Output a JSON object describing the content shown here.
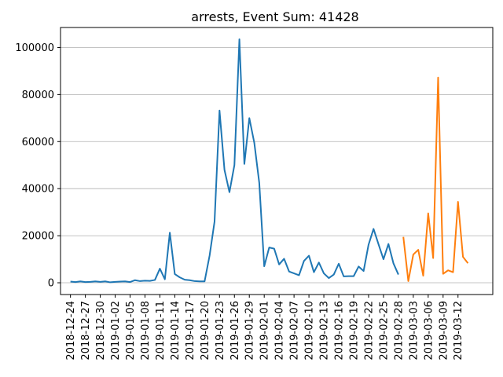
{
  "chart_data": {
    "type": "line",
    "title": "arrests, Event Sum: 41428",
    "xlabel": "",
    "ylabel": "",
    "x_start": "2018-12-24",
    "x_ticks": [
      "2018-12-24",
      "2018-12-27",
      "2018-12-30",
      "2019-01-02",
      "2019-01-05",
      "2019-01-08",
      "2019-01-11",
      "2019-01-14",
      "2019-01-17",
      "2019-01-20",
      "2019-01-23",
      "2019-01-26",
      "2019-01-29",
      "2019-02-01",
      "2019-02-04",
      "2019-02-07",
      "2019-02-10",
      "2019-02-13",
      "2019-02-16",
      "2019-02-19",
      "2019-02-22",
      "2019-02-25",
      "2019-02-28",
      "2019-03-03",
      "2019-03-06",
      "2019-03-09",
      "2019-03-12"
    ],
    "y_ticks": [
      0,
      20000,
      40000,
      60000,
      80000,
      100000
    ],
    "y_tick_labels": [
      "0",
      "20000",
      "40000",
      "60000",
      "80000",
      "100000"
    ],
    "xlim": [
      "2018-12-22",
      "2019-03-19"
    ],
    "ylim": [
      -5000,
      108500
    ],
    "grid": "y",
    "colors": {
      "series1": "#1f77b4",
      "series2": "#ff7f0e"
    },
    "series": [
      {
        "color": "#1f77b4",
        "x": [
          "2018-12-24",
          "2018-12-25",
          "2018-12-26",
          "2018-12-27",
          "2018-12-28",
          "2018-12-29",
          "2018-12-30",
          "2018-12-31",
          "2019-01-01",
          "2019-01-02",
          "2019-01-03",
          "2019-01-04",
          "2019-01-05",
          "2019-01-06",
          "2019-01-07",
          "2019-01-08",
          "2019-01-09",
          "2019-01-10",
          "2019-01-11",
          "2019-01-12",
          "2019-01-13",
          "2019-01-14",
          "2019-01-15",
          "2019-01-16",
          "2019-01-17",
          "2019-01-18",
          "2019-01-19",
          "2019-01-20",
          "2019-01-21",
          "2019-01-22",
          "2019-01-23",
          "2019-01-24",
          "2019-01-25",
          "2019-01-26",
          "2019-01-27",
          "2019-01-28",
          "2019-01-29",
          "2019-01-30",
          "2019-01-31",
          "2019-02-01",
          "2019-02-02",
          "2019-02-03",
          "2019-02-04",
          "2019-02-05",
          "2019-02-06",
          "2019-02-07",
          "2019-02-08",
          "2019-02-09",
          "2019-02-10",
          "2019-02-11",
          "2019-02-12",
          "2019-02-13",
          "2019-02-14",
          "2019-02-15",
          "2019-02-16",
          "2019-02-17",
          "2019-02-18",
          "2019-02-19",
          "2019-02-20",
          "2019-02-21",
          "2019-02-22",
          "2019-02-23",
          "2019-02-24",
          "2019-02-25",
          "2019-02-26",
          "2019-02-27",
          "2019-02-28"
        ],
        "values": [
          500,
          300,
          600,
          300,
          400,
          600,
          400,
          600,
          200,
          400,
          500,
          600,
          300,
          1100,
          700,
          900,
          800,
          1200,
          6000,
          1500,
          21300,
          3700,
          2300,
          1300,
          1100,
          700,
          600,
          600,
          11500,
          26000,
          73200,
          48000,
          38500,
          50000,
          103500,
          50500,
          70000,
          59500,
          42500,
          7000,
          15000,
          14500,
          7800,
          10200,
          4800,
          4000,
          3200,
          9300,
          11500,
          4500,
          8600,
          4000,
          2000,
          3500,
          8100,
          2700,
          2800,
          2800,
          6900,
          5000,
          16200,
          22900,
          16400,
          10000,
          16500,
          8300,
          3500
        ]
      },
      {
        "color": "#ff7f0e",
        "x": [
          "2019-03-01",
          "2019-03-02",
          "2019-03-03",
          "2019-03-04",
          "2019-03-05",
          "2019-03-06",
          "2019-03-07",
          "2019-03-08",
          "2019-03-09",
          "2019-03-10",
          "2019-03-11",
          "2019-03-12",
          "2019-03-13",
          "2019-03-14"
        ],
        "values": [
          19500,
          700,
          12000,
          14000,
          3000,
          29500,
          10500,
          87200,
          3800,
          5300,
          4500,
          34400,
          11000,
          8300
        ]
      }
    ]
  }
}
